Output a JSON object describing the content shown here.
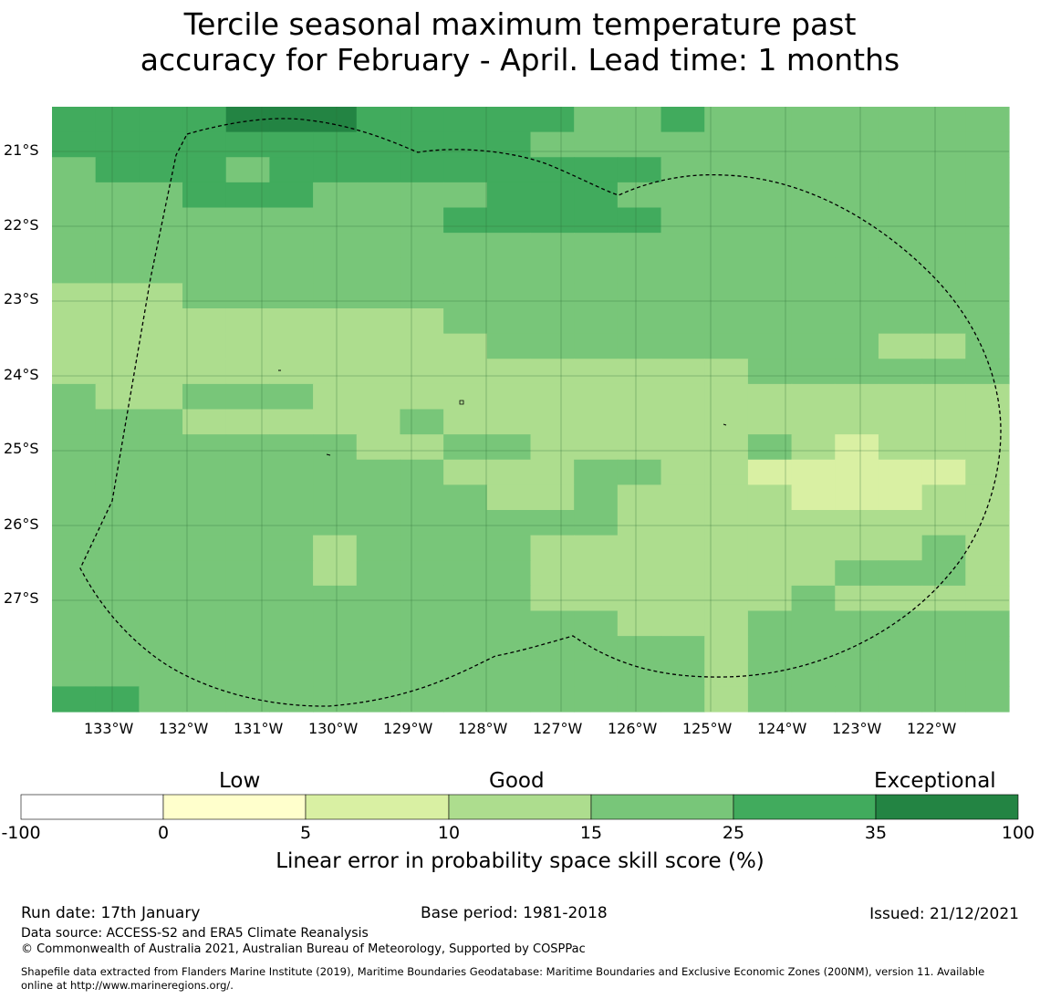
{
  "title_line1": "Tercile seasonal maximum temperature past",
  "title_line2": "accuracy for February - April. Lead time: 1 months",
  "map": {
    "lat_labels": [
      "21°S",
      "22°S",
      "23°S",
      "24°S",
      "25°S",
      "26°S",
      "27°S"
    ],
    "lon_labels": [
      "133°W",
      "132°W",
      "131°W",
      "130°W",
      "129°W",
      "128°W",
      "127°W",
      "126°W",
      "125°W",
      "124°W",
      "123°W",
      "122°W"
    ],
    "grid_legend": [
      "0: 0-5",
      "1: 5-10",
      "2: 10-15",
      "3: 15-25",
      "4: 25-35",
      "5: 35-100"
    ],
    "grid": [
      "4444555444443343333333",
      "4444444444433333333333",
      "3444344444444433333333",
      "3334443333444333333333",
      "3333333334444433333333",
      "3333333333333333333333",
      "3333333333333333333333",
      "2223333333333333333333",
      "2222222223333333333333",
      "2222222222333333333223",
      "2222222222222222333333",
      "3223332222222222222222",
      "3332222232222222222222",
      "3333333223322222321222",
      "3333333332223322111112",
      "3333333333223222211122",
      "3333333333333222222222",
      "3333332333322222222232",
      "3333332333322222223332",
      "3333333333322222232222",
      "3333333333333222333333",
      "3333333333333332333333",
      "3333333333333332333333",
      "4433333333333332333333"
    ]
  },
  "colorbar": {
    "categories": [
      "Low",
      "Good",
      "Exceptional"
    ],
    "ticks": [
      "-100",
      "0",
      "5",
      "10",
      "15",
      "25",
      "35",
      "100"
    ],
    "colors": [
      "#ffffff",
      "#ffffcc",
      "#d9f0a3",
      "#addd8e",
      "#78c679",
      "#41ab5d",
      "#238443"
    ],
    "label": "Linear error in probability space skill score (%)"
  },
  "footer": {
    "run_date": "Run date: 17th January",
    "base_period": "Base period: 1981-2018",
    "issued": "Issued: 21/12/2021",
    "data_source": "Data source: ACCESS-S2 and ERA5 Climate Reanalysis",
    "copyright": "© Commonwealth of Australia 2021, Australian Bureau of Meteorology, Supported by COSPPac",
    "shapefile_line1": "Shapefile data extracted from Flanders Marine Institute (2019), Maritime Boundaries Geodatabase: Maritime Boundaries and Exclusive Economic Zones (200NM), version 11. Available",
    "shapefile_line2": "online at http://www.marineregions.org/."
  }
}
